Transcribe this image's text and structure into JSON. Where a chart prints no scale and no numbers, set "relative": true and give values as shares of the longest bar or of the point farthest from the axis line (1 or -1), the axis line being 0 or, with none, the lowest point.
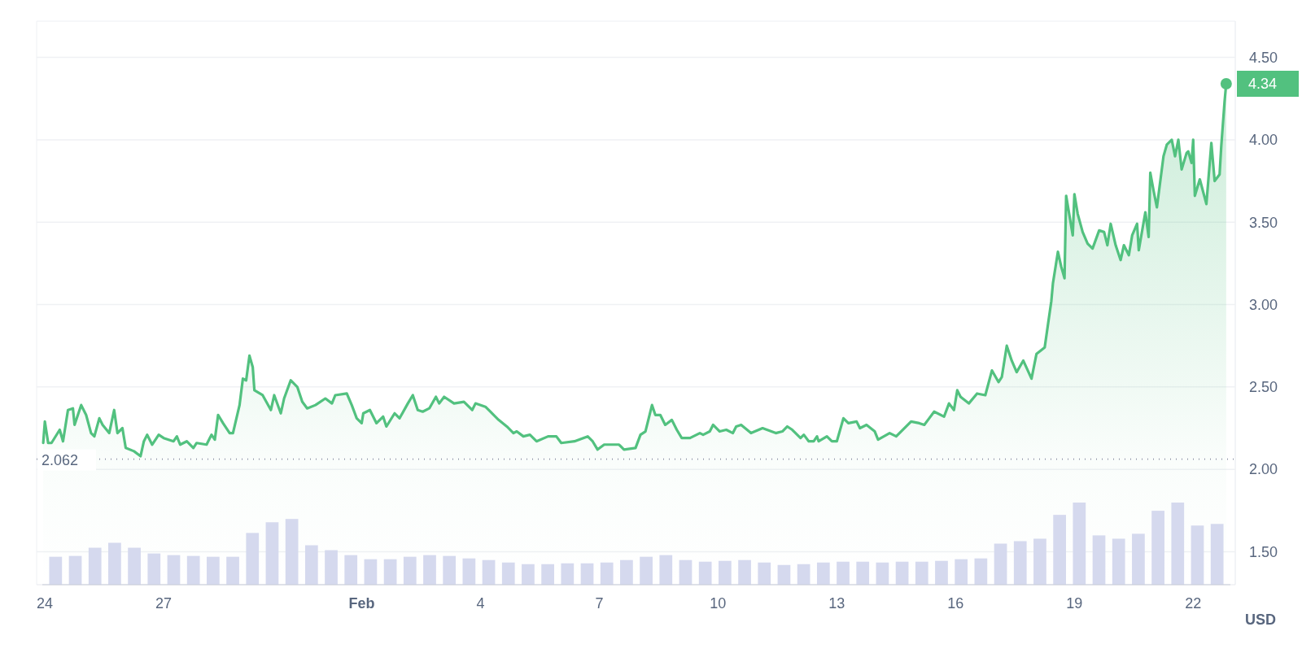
{
  "chart_data": [
    {
      "type": "area",
      "color": "#52c17f",
      "ylabel": "USD",
      "grid": "y",
      "marker": "none",
      "line_style": "solid",
      "xlim": [
        "--01-23T19:00",
        "--02-23T01:30"
      ],
      "xticks": [
        {
          "value": "--01-24",
          "label": "24"
        },
        {
          "value": "--01-27",
          "label": "27"
        },
        {
          "value": "--02-01",
          "label": "Feb"
        },
        {
          "value": "--02-04",
          "label": "4"
        },
        {
          "value": "--02-07",
          "label": "7"
        },
        {
          "value": "--02-10",
          "label": "10"
        },
        {
          "value": "--02-13",
          "label": "13"
        },
        {
          "value": "--02-16",
          "label": "16"
        },
        {
          "value": "--02-19",
          "label": "19"
        },
        {
          "value": "--02-22",
          "label": "22"
        }
      ],
      "ylim": [
        1.3,
        4.72
      ],
      "yticks": [
        {
          "value": 4.5,
          "label": "4.50"
        },
        {
          "value": 4,
          "label": "4.00"
        },
        {
          "value": 3.5,
          "label": "3.50"
        },
        {
          "value": 3,
          "label": "3.00"
        },
        {
          "value": 2.5,
          "label": "2.50"
        },
        {
          "value": 2,
          "label": "2.00"
        },
        {
          "value": 1.5,
          "label": "1.50"
        }
      ],
      "ref_lines": [
        {
          "axis": "y",
          "value": 2.062,
          "label": "2.062",
          "line_style": "dotted",
          "color": "#8a91a3"
        }
      ],
      "annotations": [
        {
          "text": "4.34",
          "x": "--02-22T20:00",
          "y": 4.34
        }
      ],
      "x": [
        "--01-23T23:00",
        "--01-24T00:00",
        "--01-24T02:00",
        "--01-24T04:00",
        "--01-24T09:00",
        "--01-24T11:00",
        "--01-24T14:00",
        "--01-24T17:00",
        "--01-24T18:00",
        "--01-24T22:00",
        "--01-25T01:00",
        "--01-25T04:00",
        "--01-25T06:00",
        "--01-25T09:00",
        "--01-25T11:00",
        "--01-25T15:00",
        "--01-25T18:00",
        "--01-25T20:00",
        "--01-25T23:00",
        "--01-26T01:00",
        "--01-26T06:00",
        "--01-26T10:00",
        "--01-26T12:00",
        "--01-26T14:00",
        "--01-26T17:00",
        "--01-26T21:00",
        "--01-27T00:00",
        "--01-27T06:00",
        "--01-27T08:00",
        "--01-27T10:00",
        "--01-27T14:00",
        "--01-27T18:00",
        "--01-27T20:00",
        "--01-28T02:00",
        "--01-28T05:00",
        "--01-28T07:00",
        "--01-28T09:00",
        "--01-28T12:00",
        "--01-28T16:00",
        "--01-28T18:00",
        "--01-28T22:00",
        "--01-29T00:00",
        "--01-29T02:00",
        "--01-29T04:00",
        "--01-29T06:00",
        "--01-29T07:00",
        "--01-29T12:00",
        "--01-29T17:00",
        "--01-29T19:00",
        "--01-29T23:00",
        "--01-30T01:00",
        "--01-30T05:00",
        "--01-30T09:00",
        "--01-30T12:00",
        "--01-30T15:00",
        "--01-30T20:00",
        "--01-31T02:00",
        "--01-31T06:00",
        "--01-31T08:00",
        "--01-31T15:00",
        "--01-31T18:00",
        "--01-31T21:00",
        "--02-01T00:00",
        "--02-01T01:00",
        "--02-01T05:00",
        "--02-01T09:00",
        "--02-01T13:00",
        "--02-01T15:00",
        "--02-01T20:00",
        "--02-01T23:00",
        "--02-02T04:00",
        "--02-02T07:00",
        "--02-02T10:00",
        "--02-02T13:00",
        "--02-02T17:00",
        "--02-02T21:00",
        "--02-02T23:00",
        "--02-03T02:00",
        "--02-03T08:00",
        "--02-03T14:00",
        "--02-03T19:00",
        "--02-03T21:00",
        "--02-04T03:00",
        "--02-04T06:00",
        "--02-04T11:00",
        "--02-04T16:00",
        "--02-04T20:00",
        "--02-04T22:00",
        "--02-05T02:00",
        "--02-05T06:00",
        "--02-05T10:00",
        "--02-05T17:00",
        "--02-05T22:00",
        "--02-06T01:00",
        "--02-06T09:00",
        "--02-06T17:00",
        "--02-06T20:00",
        "--02-06T23:00",
        "--02-07T03:00",
        "--02-07T08:00",
        "--02-07T12:00",
        "--02-07T15:00",
        "--02-07T22:00",
        "--02-08T01:00",
        "--02-08T04:00",
        "--02-08T08:00",
        "--02-08T10:00",
        "--02-08T13:00",
        "--02-08T16:00",
        "--02-08T20:00",
        "--02-08T23:00",
        "--02-09T02:00",
        "--02-09T07:00",
        "--02-09T13:00",
        "--02-09T15:00",
        "--02-09T19:00",
        "--02-09T21:00",
        "--02-10T01:00",
        "--02-10T05:00",
        "--02-10T09:00",
        "--02-10T11:00",
        "--02-10T14:00",
        "--02-10T20:00",
        "--02-11T03:00",
        "--02-11T11:00",
        "--02-11T15:00",
        "--02-11T18:00",
        "--02-11T21:00",
        "--02-12T02:00",
        "--02-12T04:00",
        "--02-12T07:00",
        "--02-12T10:00",
        "--02-12T12:00",
        "--02-12T13:00",
        "--02-12T18:00",
        "--02-12T21:00",
        "--02-13T00:00",
        "--02-13T04:00",
        "--02-13T07:00",
        "--02-13T12:00",
        "--02-13T14:00",
        "--02-13T18:00",
        "--02-13T23:00",
        "--02-14T01:00",
        "--02-14T08:00",
        "--02-14T12:00",
        "--02-14T21:00",
        "--02-15T02:00",
        "--02-15T05:00",
        "--02-15T08:00",
        "--02-15T11:00",
        "--02-15T17:00",
        "--02-15T20:00",
        "--02-15T23:00",
        "--02-16T01:00",
        "--02-16T03:00",
        "--02-16T08:00",
        "--02-16T13:00",
        "--02-16T18:00",
        "--02-16T22:00",
        "--02-17T02:00",
        "--02-17T04:00",
        "--02-17T07:00",
        "--02-17T10:00",
        "--02-17T13:00",
        "--02-17T17:00",
        "--02-17T22:00",
        "--02-18T01:00",
        "--02-18T06:00",
        "--02-18T08:00",
        "--02-18T10:00",
        "--02-18T11:00",
        "--02-18T14:00",
        "--02-18T16:00",
        "--02-18T18:00",
        "--02-18T19:00",
        "--02-18T23:00",
        "--02-19T00:00",
        "--02-19T02:00",
        "--02-19T05:00",
        "--02-19T08:00",
        "--02-19T11:00",
        "--02-19T15:00",
        "--02-19T18:00",
        "--02-19T20:00",
        "--02-19T22:00",
        "--02-20T01:00",
        "--02-20T04:00",
        "--02-20T06:00",
        "--02-20T09:00",
        "--02-20T11:00",
        "--02-20T14:00",
        "--02-20T15:00",
        "--02-20T19:00",
        "--02-20T21:00",
        "--02-20T22:00",
        "--02-21T00:00",
        "--02-21T02:00",
        "--02-21T06:00",
        "--02-21T08:00",
        "--02-21T11:00",
        "--02-21T13:00",
        "--02-21T15:00",
        "--02-21T17:00",
        "--02-21T20:00",
        "--02-21T21:00",
        "--02-21T23:00",
        "--02-22T00:00",
        "--02-22T01:00",
        "--02-22T04:00",
        "--02-22T08:00",
        "--02-22T11:00",
        "--02-22T13:00",
        "--02-22T16:00",
        "--02-22T17:00",
        "--02-22T19:00",
        "--02-22T20:00"
      ],
      "values": [
        2.16,
        2.29,
        2.16,
        2.16,
        2.24,
        2.17,
        2.36,
        2.37,
        2.27,
        2.39,
        2.33,
        2.22,
        2.2,
        2.31,
        2.27,
        2.22,
        2.36,
        2.22,
        2.25,
        2.13,
        2.11,
        2.08,
        2.17,
        2.21,
        2.15,
        2.21,
        2.19,
        2.17,
        2.2,
        2.15,
        2.17,
        2.13,
        2.16,
        2.15,
        2.21,
        2.18,
        2.33,
        2.28,
        2.22,
        2.22,
        2.39,
        2.55,
        2.54,
        2.69,
        2.62,
        2.48,
        2.45,
        2.36,
        2.45,
        2.34,
        2.43,
        2.54,
        2.5,
        2.41,
        2.37,
        2.39,
        2.43,
        2.4,
        2.45,
        2.46,
        2.39,
        2.31,
        2.28,
        2.34,
        2.36,
        2.28,
        2.32,
        2.26,
        2.34,
        2.31,
        2.4,
        2.45,
        2.36,
        2.35,
        2.37,
        2.44,
        2.4,
        2.44,
        2.4,
        2.41,
        2.36,
        2.4,
        2.38,
        2.35,
        2.3,
        2.26,
        2.22,
        2.23,
        2.2,
        2.21,
        2.17,
        2.2,
        2.2,
        2.16,
        2.17,
        2.2,
        2.17,
        2.12,
        2.15,
        2.15,
        2.15,
        2.12,
        2.13,
        2.21,
        2.23,
        2.39,
        2.33,
        2.33,
        2.27,
        2.3,
        2.24,
        2.19,
        2.19,
        2.22,
        2.21,
        2.23,
        2.27,
        2.23,
        2.24,
        2.22,
        2.26,
        2.27,
        2.22,
        2.25,
        2.22,
        2.23,
        2.26,
        2.24,
        2.19,
        2.21,
        2.17,
        2.17,
        2.2,
        2.17,
        2.2,
        2.17,
        2.17,
        2.31,
        2.28,
        2.29,
        2.25,
        2.27,
        2.23,
        2.18,
        2.22,
        2.2,
        2.29,
        2.28,
        2.27,
        2.31,
        2.35,
        2.32,
        2.4,
        2.36,
        2.48,
        2.44,
        2.4,
        2.46,
        2.45,
        2.6,
        2.53,
        2.56,
        2.75,
        2.66,
        2.59,
        2.66,
        2.55,
        2.7,
        2.74,
        2.88,
        3.02,
        3.13,
        3.32,
        3.23,
        3.16,
        3.66,
        3.42,
        3.67,
        3.55,
        3.44,
        3.37,
        3.34,
        3.45,
        3.44,
        3.36,
        3.49,
        3.36,
        3.27,
        3.36,
        3.3,
        3.42,
        3.49,
        3.33,
        3.56,
        3.41,
        3.8,
        3.69,
        3.59,
        3.9,
        3.97,
        4.0,
        3.9,
        4.0,
        3.82,
        3.92,
        3.93,
        3.86,
        4.0,
        3.66,
        3.76,
        3.61,
        3.98,
        3.75,
        3.79,
        3.96,
        4.23,
        4.34
      ]
    },
    {
      "type": "bar",
      "relative": true,
      "color": "#d5d9ee",
      "categories": [
        null,
        null,
        null,
        null,
        null,
        null,
        null,
        null,
        null,
        null,
        null,
        null,
        null,
        null,
        null,
        null,
        null,
        null,
        null,
        null,
        null,
        null,
        null,
        null,
        null,
        null,
        null,
        null,
        null,
        null,
        null,
        null,
        null,
        null,
        null,
        null,
        null,
        null,
        null,
        null,
        null,
        null,
        null,
        null,
        null,
        null,
        null,
        null,
        null,
        null,
        null,
        null,
        null,
        null,
        null,
        null,
        null,
        null,
        null,
        null
      ],
      "values": [
        0.34,
        0.35,
        0.45,
        0.51,
        0.45,
        0.38,
        0.36,
        0.35,
        0.34,
        0.34,
        0.63,
        0.76,
        0.8,
        0.48,
        0.42,
        0.36,
        0.31,
        0.31,
        0.34,
        0.36,
        0.35,
        0.32,
        0.3,
        0.27,
        0.25,
        0.25,
        0.26,
        0.26,
        0.27,
        0.3,
        0.34,
        0.36,
        0.3,
        0.28,
        0.29,
        0.3,
        0.27,
        0.24,
        0.25,
        0.27,
        0.28,
        0.28,
        0.27,
        0.28,
        0.28,
        0.29,
        0.31,
        0.32,
        0.5,
        0.53,
        0.56,
        0.85,
        1.0,
        0.6,
        0.56,
        0.62,
        0.9,
        1.0,
        0.72,
        0.74
      ]
    }
  ]
}
